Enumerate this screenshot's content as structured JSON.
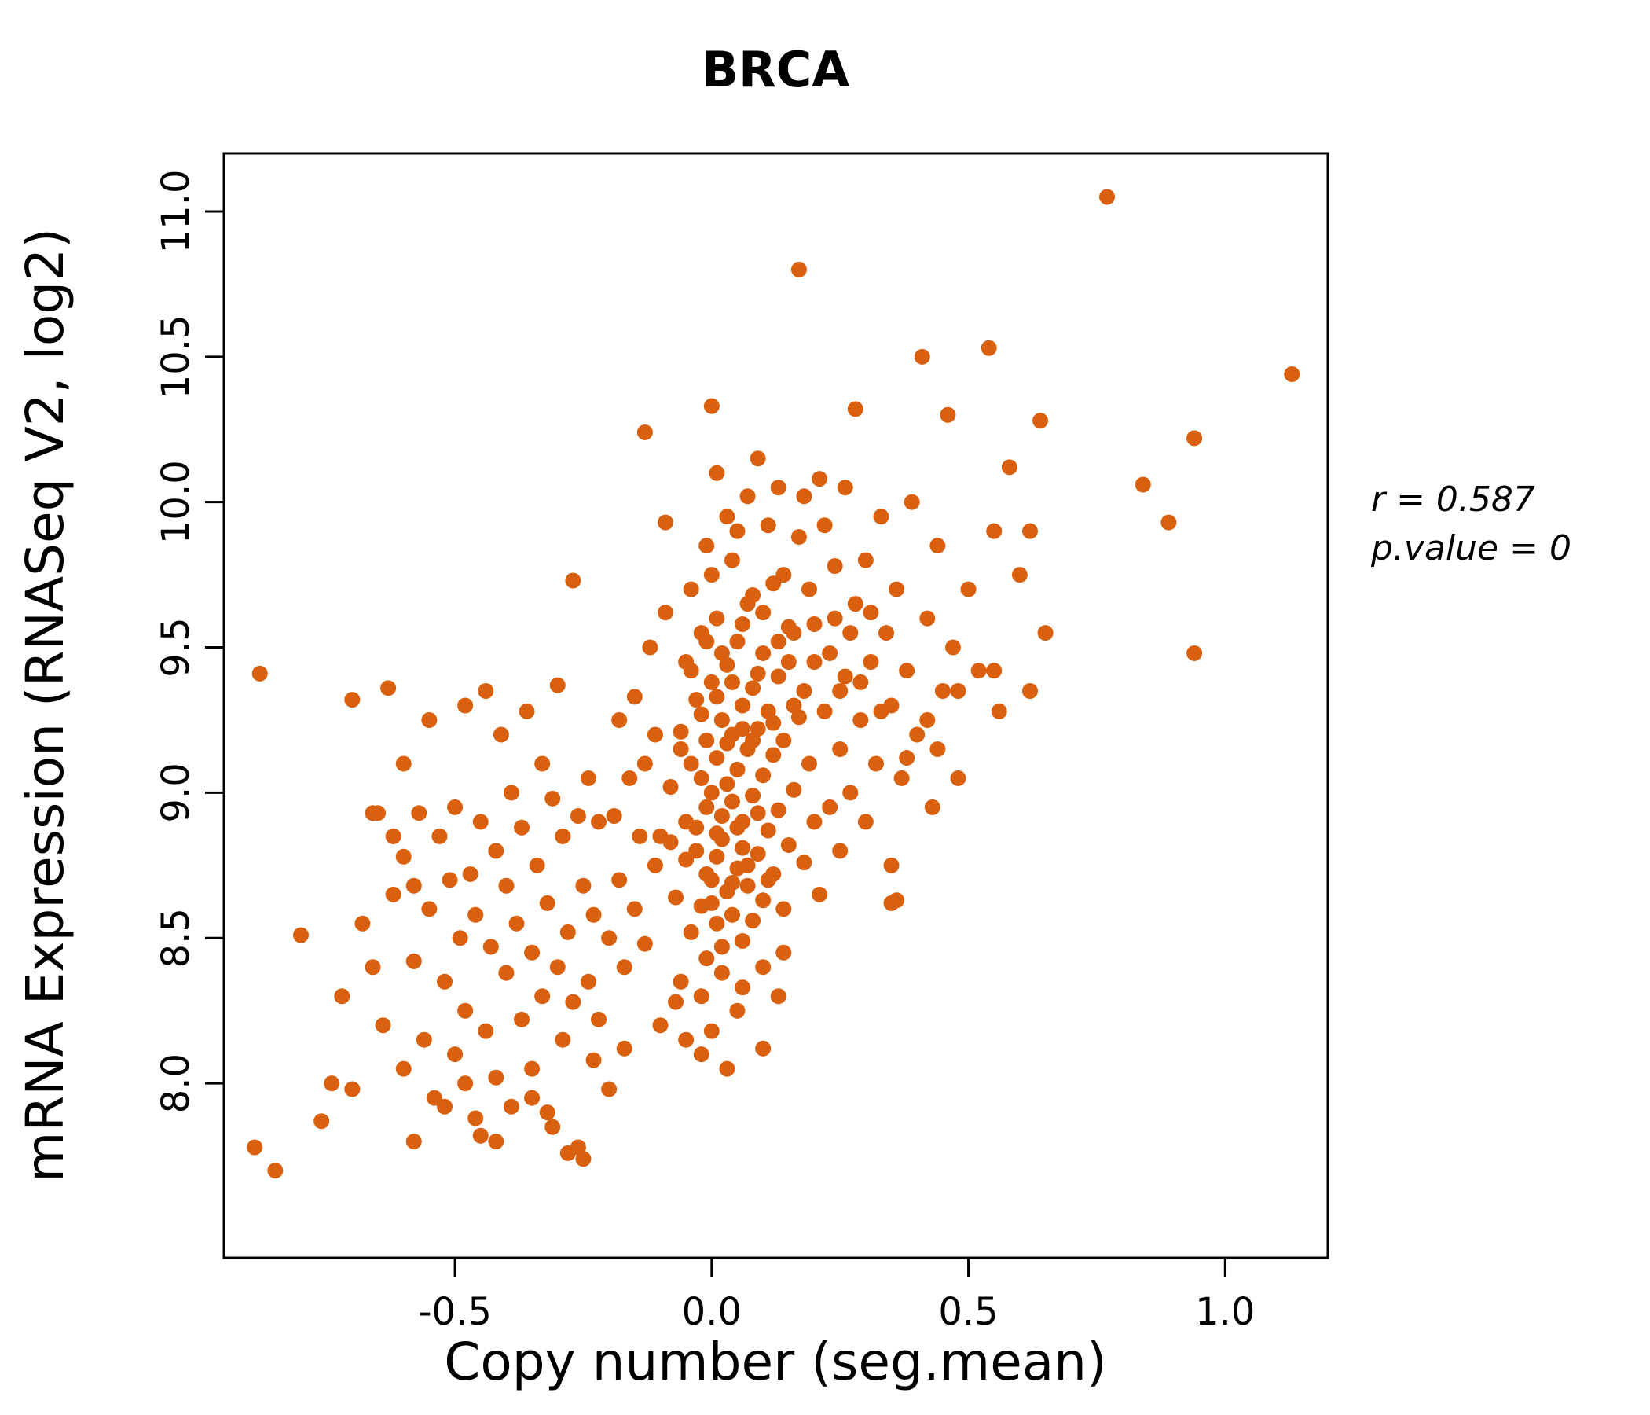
{
  "chart_data": {
    "type": "scatter",
    "title": "BRCA",
    "xlabel": "Copy number (seg.mean)",
    "ylabel": "mRNA Expression (RNASeq V2, log2)",
    "xlim": [
      -0.95,
      1.2
    ],
    "ylim": [
      7.4,
      11.2
    ],
    "xticks": [
      -0.5,
      0.0,
      0.5,
      1.0
    ],
    "xtick_labels": [
      "-0.5",
      "0.0",
      "0.5",
      "1.0"
    ],
    "yticks": [
      8.0,
      8.5,
      9.0,
      9.5,
      10.0,
      10.5,
      11.0
    ],
    "ytick_labels": [
      "8.0",
      "8.5",
      "9.0",
      "9.5",
      "10.0",
      "10.5",
      "11.0"
    ],
    "legend_position": "none",
    "grid": false,
    "annotation": {
      "line1": "r = 0.587",
      "line2": "p.value = 0"
    },
    "point_color": "#D9600F",
    "title_color": "#D9600F",
    "points": [
      [
        -0.1,
        8.85
      ],
      [
        -0.08,
        9.02
      ],
      [
        -0.07,
        8.64
      ],
      [
        -0.06,
        9.21
      ],
      [
        -0.05,
        8.77
      ],
      [
        -0.05,
        9.45
      ],
      [
        -0.04,
        8.52
      ],
      [
        -0.04,
        9.1
      ],
      [
        -0.03,
        8.88
      ],
      [
        -0.03,
        9.32
      ],
      [
        -0.02,
        8.61
      ],
      [
        -0.02,
        9.05
      ],
      [
        -0.02,
        9.55
      ],
      [
        -0.01,
        8.43
      ],
      [
        -0.01,
        8.95
      ],
      [
        -0.01,
        9.18
      ],
      [
        0.0,
        8.7
      ],
      [
        0.0,
        9.0
      ],
      [
        0.0,
        9.38
      ],
      [
        0.01,
        8.55
      ],
      [
        0.01,
        8.86
      ],
      [
        0.01,
        9.12
      ],
      [
        0.01,
        9.6
      ],
      [
        0.02,
        8.47
      ],
      [
        0.02,
        8.92
      ],
      [
        0.02,
        9.25
      ],
      [
        0.03,
        8.66
      ],
      [
        0.03,
        9.03
      ],
      [
        0.03,
        9.44
      ],
      [
        0.04,
        8.58
      ],
      [
        0.04,
        8.97
      ],
      [
        0.04,
        9.2
      ],
      [
        0.05,
        8.74
      ],
      [
        0.05,
        9.08
      ],
      [
        0.05,
        9.52
      ],
      [
        0.06,
        8.49
      ],
      [
        0.06,
        8.9
      ],
      [
        0.06,
        9.3
      ],
      [
        0.07,
        8.68
      ],
      [
        0.07,
        9.15
      ],
      [
        0.07,
        9.65
      ],
      [
        0.08,
        8.56
      ],
      [
        0.08,
        8.99
      ],
      [
        0.08,
        9.36
      ],
      [
        0.09,
        8.79
      ],
      [
        0.09,
        9.22
      ],
      [
        0.1,
        8.63
      ],
      [
        0.1,
        9.06
      ],
      [
        0.1,
        9.48
      ],
      [
        0.11,
        8.87
      ],
      [
        0.11,
        9.28
      ],
      [
        0.12,
        8.72
      ],
      [
        0.12,
        9.13
      ],
      [
        0.13,
        8.94
      ],
      [
        0.13,
        9.4
      ],
      [
        0.14,
        8.6
      ],
      [
        0.14,
        9.18
      ],
      [
        0.15,
        8.82
      ],
      [
        0.15,
        9.57
      ],
      [
        0.16,
        9.01
      ],
      [
        0.17,
        9.26
      ],
      [
        0.18,
        8.76
      ],
      [
        0.18,
        9.35
      ],
      [
        -0.09,
        9.62
      ],
      [
        -0.06,
        8.35
      ],
      [
        -0.04,
        9.7
      ],
      [
        -0.02,
        8.3
      ],
      [
        0.0,
        9.75
      ],
      [
        0.02,
        8.38
      ],
      [
        0.04,
        9.8
      ],
      [
        0.06,
        8.33
      ],
      [
        0.08,
        9.68
      ],
      [
        0.1,
        8.4
      ],
      [
        0.12,
        9.72
      ],
      [
        0.14,
        8.45
      ],
      [
        0.16,
        9.55
      ],
      [
        0.05,
        9.9
      ],
      [
        0.03,
        9.95
      ],
      [
        -0.01,
        9.85
      ],
      [
        0.07,
        10.02
      ],
      [
        0.01,
        10.1
      ],
      [
        0.11,
        9.92
      ],
      [
        0.09,
        10.15
      ],
      [
        -0.2,
        8.5
      ],
      [
        -0.19,
        8.92
      ],
      [
        -0.18,
        8.7
      ],
      [
        -0.18,
        9.25
      ],
      [
        -0.17,
        8.4
      ],
      [
        -0.16,
        9.05
      ],
      [
        -0.15,
        8.6
      ],
      [
        -0.15,
        9.33
      ],
      [
        -0.14,
        8.85
      ],
      [
        -0.13,
        9.1
      ],
      [
        -0.13,
        8.48
      ],
      [
        -0.12,
        9.5
      ],
      [
        -0.11,
        8.75
      ],
      [
        -0.11,
        9.2
      ],
      [
        0.19,
        9.1
      ],
      [
        0.2,
        8.9
      ],
      [
        0.2,
        9.45
      ],
      [
        0.21,
        8.65
      ],
      [
        0.22,
        9.28
      ],
      [
        0.23,
        8.95
      ],
      [
        0.24,
        9.6
      ],
      [
        0.25,
        9.15
      ],
      [
        0.25,
        8.8
      ],
      [
        -0.72,
        8.3
      ],
      [
        -0.7,
        7.98
      ],
      [
        -0.68,
        8.55
      ],
      [
        -0.66,
        8.93
      ],
      [
        -0.64,
        8.2
      ],
      [
        -0.62,
        8.65
      ],
      [
        -0.6,
        8.05
      ],
      [
        -0.6,
        8.78
      ],
      [
        -0.58,
        8.42
      ],
      [
        -0.57,
        8.93
      ],
      [
        -0.56,
        8.15
      ],
      [
        -0.55,
        8.6
      ],
      [
        -0.54,
        7.95
      ],
      [
        -0.53,
        8.85
      ],
      [
        -0.52,
        8.35
      ],
      [
        -0.51,
        8.7
      ],
      [
        -0.5,
        8.1
      ],
      [
        -0.5,
        8.95
      ],
      [
        -0.49,
        8.5
      ],
      [
        -0.48,
        8.25
      ],
      [
        -0.48,
        9.3
      ],
      [
        -0.47,
        8.72
      ],
      [
        -0.46,
        7.88
      ],
      [
        -0.46,
        8.58
      ],
      [
        -0.45,
        8.9
      ],
      [
        -0.44,
        8.18
      ],
      [
        -0.44,
        9.35
      ],
      [
        -0.43,
        8.47
      ],
      [
        -0.42,
        8.8
      ],
      [
        -0.42,
        8.02
      ],
      [
        -0.41,
        9.2
      ],
      [
        -0.4,
        8.38
      ],
      [
        -0.4,
        8.68
      ],
      [
        -0.39,
        7.92
      ],
      [
        -0.39,
        9.0
      ],
      [
        -0.38,
        8.55
      ],
      [
        -0.37,
        8.22
      ],
      [
        -0.37,
        8.88
      ],
      [
        -0.36,
        9.28
      ],
      [
        -0.35,
        8.45
      ],
      [
        -0.35,
        8.05
      ],
      [
        -0.34,
        8.75
      ],
      [
        -0.33,
        8.3
      ],
      [
        -0.33,
        9.1
      ],
      [
        -0.32,
        8.62
      ],
      [
        -0.31,
        7.85
      ],
      [
        -0.31,
        8.98
      ],
      [
        -0.3,
        8.4
      ],
      [
        -0.3,
        9.37
      ],
      [
        -0.29,
        8.15
      ],
      [
        -0.29,
        8.85
      ],
      [
        -0.28,
        8.52
      ],
      [
        -0.27,
        9.73
      ],
      [
        -0.27,
        8.28
      ],
      [
        -0.26,
        8.92
      ],
      [
        -0.26,
        7.78
      ],
      [
        -0.25,
        8.68
      ],
      [
        -0.24,
        8.35
      ],
      [
        -0.24,
        9.05
      ],
      [
        -0.23,
        8.58
      ],
      [
        -0.22,
        8.22
      ],
      [
        -0.22,
        8.9
      ],
      [
        -0.88,
        9.41
      ],
      [
        -0.85,
        7.7
      ],
      [
        -0.89,
        7.78
      ],
      [
        -0.8,
        8.51
      ],
      [
        -0.76,
        7.87
      ],
      [
        -0.74,
        8.0
      ],
      [
        -0.7,
        9.32
      ],
      [
        -0.65,
        8.93
      ],
      [
        0.26,
        9.4
      ],
      [
        0.27,
        9.0
      ],
      [
        0.28,
        9.65
      ],
      [
        0.29,
        9.25
      ],
      [
        0.3,
        8.9
      ],
      [
        0.3,
        9.8
      ],
      [
        0.31,
        9.45
      ],
      [
        0.32,
        9.1
      ],
      [
        0.33,
        9.95
      ],
      [
        0.34,
        9.55
      ],
      [
        0.35,
        8.62
      ],
      [
        0.35,
        9.3
      ],
      [
        0.36,
        9.7
      ],
      [
        0.37,
        9.05
      ],
      [
        0.38,
        9.42
      ],
      [
        0.39,
        10.0
      ],
      [
        0.4,
        9.2
      ],
      [
        0.41,
        10.5
      ],
      [
        0.42,
        9.6
      ],
      [
        0.43,
        8.95
      ],
      [
        0.44,
        9.85
      ],
      [
        0.45,
        9.35
      ],
      [
        0.46,
        10.3
      ],
      [
        0.47,
        9.5
      ],
      [
        0.48,
        9.05
      ],
      [
        0.5,
        9.7
      ],
      [
        0.52,
        9.42
      ],
      [
        0.54,
        10.53
      ],
      [
        0.55,
        9.9
      ],
      [
        0.56,
        9.28
      ],
      [
        0.58,
        10.12
      ],
      [
        0.6,
        9.75
      ],
      [
        0.62,
        9.35
      ],
      [
        0.64,
        10.28
      ],
      [
        0.65,
        9.55
      ],
      [
        0.77,
        11.05
      ],
      [
        0.84,
        10.06
      ],
      [
        0.89,
        9.93
      ],
      [
        0.94,
        10.22
      ],
      [
        0.94,
        9.48
      ],
      [
        1.13,
        10.44
      ],
      [
        0.17,
        10.8
      ],
      [
        0.0,
        10.33
      ],
      [
        -0.13,
        10.24
      ],
      [
        0.28,
        10.32
      ],
      [
        0.13,
        10.05
      ],
      [
        0.21,
        10.08
      ],
      [
        -0.45,
        7.82
      ],
      [
        -0.42,
        7.8
      ],
      [
        -0.35,
        7.95
      ],
      [
        -0.32,
        7.9
      ],
      [
        -0.28,
        7.76
      ],
      [
        -0.25,
        7.74
      ],
      [
        -0.23,
        8.08
      ],
      [
        -0.2,
        7.98
      ],
      [
        -0.48,
        8.0
      ],
      [
        -0.52,
        7.92
      ],
      [
        -0.58,
        7.8
      ],
      [
        -0.17,
        8.12
      ],
      [
        -0.1,
        8.2
      ],
      [
        -0.05,
        8.15
      ],
      [
        0.0,
        8.18
      ],
      [
        0.05,
        8.25
      ],
      [
        0.1,
        8.12
      ],
      [
        0.13,
        8.3
      ],
      [
        -0.02,
        8.1
      ],
      [
        0.03,
        8.05
      ],
      [
        -0.07,
        8.28
      ],
      [
        -0.03,
        8.8
      ],
      [
        -0.01,
        8.72
      ],
      [
        0.01,
        8.78
      ],
      [
        0.02,
        8.84
      ],
      [
        0.04,
        8.69
      ],
      [
        0.06,
        8.81
      ],
      [
        0.0,
        8.62
      ],
      [
        -0.05,
        8.9
      ],
      [
        0.05,
        8.88
      ],
      [
        0.07,
        8.75
      ],
      [
        0.09,
        8.93
      ],
      [
        0.11,
        8.7
      ],
      [
        -0.08,
        8.83
      ],
      [
        -0.06,
        9.15
      ],
      [
        0.03,
        9.17
      ],
      [
        0.06,
        9.22
      ],
      [
        -0.02,
        9.27
      ],
      [
        0.08,
        9.18
      ],
      [
        0.12,
        9.24
      ],
      [
        0.01,
        9.33
      ],
      [
        0.04,
        9.38
      ],
      [
        -0.04,
        9.42
      ],
      [
        0.09,
        9.41
      ],
      [
        0.02,
        9.48
      ],
      [
        0.06,
        9.58
      ],
      [
        -0.01,
        9.52
      ],
      [
        0.1,
        9.62
      ],
      [
        0.13,
        9.52
      ],
      [
        0.15,
        9.45
      ],
      [
        0.16,
        9.3
      ],
      [
        -0.09,
        9.93
      ],
      [
        0.14,
        9.75
      ],
      [
        0.17,
        9.88
      ],
      [
        0.19,
        9.7
      ],
      [
        0.22,
        9.92
      ],
      [
        0.24,
        9.78
      ],
      [
        0.26,
        10.05
      ],
      [
        0.18,
        10.02
      ],
      [
        0.2,
        9.58
      ],
      [
        0.23,
        9.48
      ],
      [
        0.25,
        9.35
      ],
      [
        0.27,
        9.55
      ],
      [
        0.29,
        9.38
      ],
      [
        0.31,
        9.62
      ],
      [
        0.33,
        9.28
      ],
      [
        0.35,
        8.75
      ],
      [
        0.38,
        9.12
      ],
      [
        0.42,
        9.25
      ],
      [
        0.48,
        9.35
      ],
      [
        0.55,
        9.42
      ],
      [
        0.62,
        9.9
      ],
      [
        0.36,
        8.63
      ],
      [
        0.44,
        9.15
      ],
      [
        -0.6,
        9.1
      ],
      [
        -0.55,
        9.25
      ],
      [
        -0.62,
        8.85
      ],
      [
        -0.66,
        8.4
      ],
      [
        -0.58,
        8.68
      ],
      [
        -0.63,
        9.36
      ]
    ]
  }
}
